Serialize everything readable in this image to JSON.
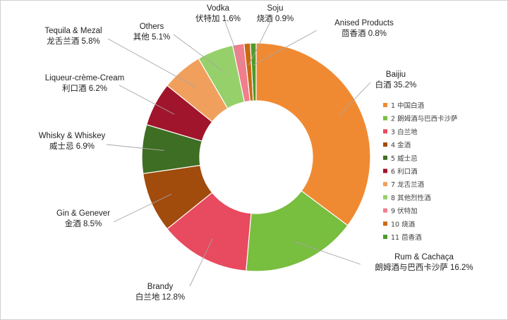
{
  "chart_data": {
    "type": "pie",
    "style": "donut",
    "title": "",
    "slices": [
      {
        "label_en": "Baijiu",
        "label_cn": "白酒",
        "value": 35.2,
        "color": "#F08A32"
      },
      {
        "label_en": "Rum & Cachaça",
        "label_cn": "朗姆酒与巴西卡沙萨",
        "value": 16.2,
        "color": "#78BE3F"
      },
      {
        "label_en": "Brandy",
        "label_cn": "白兰地",
        "value": 12.8,
        "color": "#E84A5F"
      },
      {
        "label_en": "Gin & Genever",
        "label_cn": "金酒",
        "value": 8.5,
        "color": "#A14B0D"
      },
      {
        "label_en": "Whisky & Whiskey",
        "label_cn": "威士忌",
        "value": 6.9,
        "color": "#3E6E23"
      },
      {
        "label_en": "Liqueur-crème-Cream",
        "label_cn": "利口酒",
        "value": 6.2,
        "color": "#A0152B"
      },
      {
        "label_en": "Tequila & Mezal",
        "label_cn": "龙舌兰酒",
        "value": 5.8,
        "color": "#F0A05C"
      },
      {
        "label_en": "Others",
        "label_cn": "其他",
        "value": 5.1,
        "color": "#96D06A"
      },
      {
        "label_en": "Vodka",
        "label_cn": "伏特加",
        "value": 1.6,
        "color": "#F07E8C"
      },
      {
        "label_en": "Soju",
        "label_cn": "烧酒",
        "value": 0.9,
        "color": "#C86A12"
      },
      {
        "label_en": "Anised Products",
        "label_cn": "茴香酒",
        "value": 0.8,
        "color": "#4E9A2C"
      }
    ],
    "legend": {
      "position": "right",
      "entries": [
        "1 中国白酒",
        "2 朗姆酒与巴西卡沙萨",
        "3 白兰地",
        "4 金酒",
        "5 威士忌",
        "6 利口酒",
        "7 龙舌兰酒",
        "8 其他烈性酒",
        "9 伏特加",
        "10 烧酒",
        "11 茴香酒"
      ]
    }
  }
}
